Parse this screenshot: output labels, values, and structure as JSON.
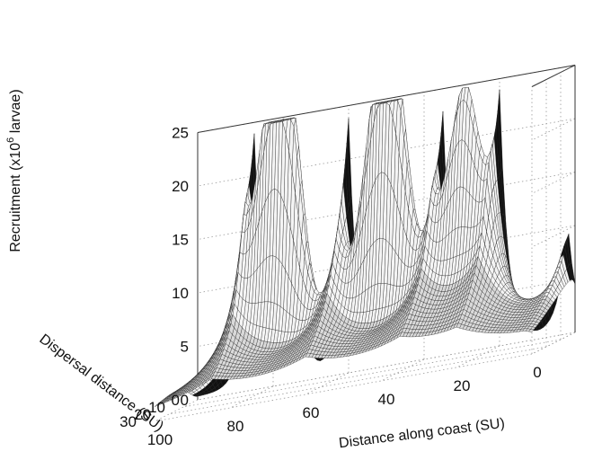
{
  "chart_data": {
    "type": "surface",
    "title": "",
    "xlabel": "Distance along coast (SU)",
    "ylabel": "Dispersal distance (SU)",
    "zlabel": "Recruitment (x10^6 larvae)",
    "zlabel_parts": {
      "prefix": "Recruitment (x10",
      "sup": "6",
      "suffix": " larvae)"
    },
    "xlim": [
      0,
      100
    ],
    "ylim": [
      0,
      30
    ],
    "zlim": [
      0,
      25
    ],
    "xticks": [
      "0",
      "20",
      "40",
      "60",
      "80",
      "100"
    ],
    "yticks": [
      "0",
      "10",
      "20",
      "30"
    ],
    "zticks": [
      "0",
      "5",
      "10",
      "15",
      "20",
      "25"
    ],
    "grid": true,
    "peaks_at_zero_dispersal": [
      {
        "x": 2,
        "z": 10.5
      },
      {
        "x": 20,
        "z": 23.5
      },
      {
        "x": 35,
        "z": 22.5
      },
      {
        "x": 60,
        "z": 23.5
      },
      {
        "x": 85,
        "z": 23.5
      }
    ],
    "peaks_white": [
      {
        "x": 27,
        "z": 22.0
      },
      {
        "x": 45,
        "z": 23.0
      },
      {
        "x": 50,
        "z": 22.5
      },
      {
        "x": 73,
        "z": 23.0
      },
      {
        "x": 78,
        "z": 22.5
      }
    ],
    "notes": "Black wireframe surface = low dispersal; white/grey mesh = higher dispersal distances, peaks flatten as dispersal increases."
  }
}
